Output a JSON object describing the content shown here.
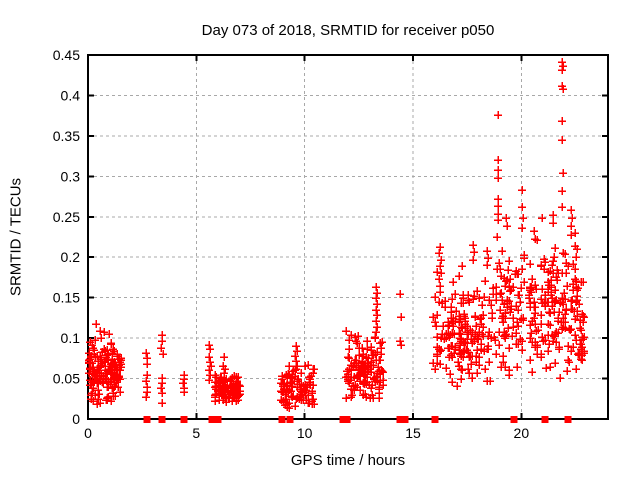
{
  "chart_data": {
    "type": "scatter",
    "title": "Day 073 of 2018, SRMTID for receiver p050",
    "xlabel": "GPS time / hours",
    "ylabel": "SRMTID / TECUs",
    "xlim": [
      0,
      24
    ],
    "ylim": [
      0,
      0.45
    ],
    "grid": true,
    "legend": "none",
    "x_ticks": [
      0,
      5,
      10,
      15,
      20
    ],
    "x_tick_labels": [
      "0",
      "5",
      "10",
      "15",
      "20"
    ],
    "y_ticks": [
      0,
      0.05,
      0.1,
      0.15,
      0.2,
      0.25,
      0.3,
      0.35,
      0.4,
      0.45
    ],
    "y_tick_labels": [
      "0",
      "0.05",
      "0.1",
      "0.15",
      "0.2",
      "0.25",
      "0.3",
      "0.35",
      "0.4",
      "0.45"
    ],
    "marker_color": "#ff0000",
    "grid_color": "#a8a8a8",
    "border_color": "#000000",
    "series": [
      {
        "name": "SRMTID",
        "marker": "plus",
        "points": [
          [
            0.38,
            0.117
          ],
          [
            0.3,
            0.098
          ],
          [
            0.55,
            0.109
          ],
          [
            0.72,
            0.108
          ],
          [
            0.95,
            0.105
          ],
          [
            1.08,
            0.094
          ],
          [
            0.62,
            0.1
          ],
          [
            0.18,
            0.092
          ],
          [
            0.25,
            0.022
          ],
          [
            0.55,
            0.02
          ],
          [
            0.85,
            0.024
          ],
          [
            1.15,
            0.028
          ],
          [
            0.4,
            0.018
          ],
          [
            2.68,
            0.082
          ],
          [
            2.72,
            0.075
          ],
          [
            2.7,
            0.068
          ],
          [
            2.74,
            0.055
          ],
          [
            2.68,
            0.047
          ],
          [
            2.72,
            0.04
          ],
          [
            2.7,
            0.033
          ],
          [
            2.68,
            0.027
          ],
          [
            3.4,
            0.104
          ],
          [
            3.42,
            0.096
          ],
          [
            3.38,
            0.088
          ],
          [
            3.44,
            0.08
          ],
          [
            3.4,
            0.051
          ],
          [
            3.42,
            0.045
          ],
          [
            3.38,
            0.038
          ],
          [
            3.42,
            0.032
          ],
          [
            3.4,
            0.02
          ],
          [
            4.42,
            0.054
          ],
          [
            4.44,
            0.049
          ],
          [
            4.4,
            0.044
          ],
          [
            4.44,
            0.038
          ],
          [
            4.42,
            0.033
          ],
          [
            5.6,
            0.091
          ],
          [
            5.64,
            0.086
          ],
          [
            5.58,
            0.077
          ],
          [
            5.62,
            0.071
          ],
          [
            5.66,
            0.066
          ],
          [
            5.6,
            0.06
          ],
          [
            5.63,
            0.055
          ],
          [
            5.6,
            0.048
          ],
          [
            6.28,
            0.077
          ],
          [
            6.24,
            0.066
          ],
          [
            6.33,
            0.062
          ],
          [
            9.6,
            0.09
          ],
          [
            9.63,
            0.084
          ],
          [
            9.57,
            0.078
          ],
          [
            9.62,
            0.072
          ],
          [
            9.65,
            0.066
          ],
          [
            13.28,
            0.163
          ],
          [
            13.33,
            0.156
          ],
          [
            13.3,
            0.149
          ],
          [
            13.35,
            0.142
          ],
          [
            13.28,
            0.135
          ],
          [
            13.32,
            0.128
          ],
          [
            13.3,
            0.121
          ],
          [
            13.36,
            0.114
          ],
          [
            13.3,
            0.107
          ],
          [
            13.26,
            0.1
          ],
          [
            13.55,
            0.095
          ],
          [
            13.52,
            0.088
          ],
          [
            14.42,
            0.155
          ],
          [
            14.45,
            0.126
          ],
          [
            14.42,
            0.097
          ],
          [
            14.46,
            0.091
          ],
          [
            16.25,
            0.213
          ],
          [
            16.22,
            0.205
          ],
          [
            16.28,
            0.197
          ],
          [
            16.24,
            0.189
          ],
          [
            16.27,
            0.181
          ],
          [
            16.22,
            0.173
          ],
          [
            16.26,
            0.165
          ],
          [
            16.24,
            0.157
          ],
          [
            17.78,
            0.215
          ],
          [
            17.81,
            0.206
          ],
          [
            17.76,
            0.197
          ],
          [
            18.42,
            0.208
          ],
          [
            18.45,
            0.199
          ],
          [
            18.4,
            0.19
          ],
          [
            18.92,
            0.376
          ],
          [
            18.9,
            0.32
          ],
          [
            18.94,
            0.308
          ],
          [
            18.92,
            0.298
          ],
          [
            18.9,
            0.272
          ],
          [
            18.94,
            0.263
          ],
          [
            18.92,
            0.254
          ],
          [
            18.9,
            0.246
          ],
          [
            19.3,
            0.248
          ],
          [
            19.33,
            0.238
          ],
          [
            20.05,
            0.283
          ],
          [
            20.02,
            0.262
          ],
          [
            20.08,
            0.248
          ],
          [
            20.6,
            0.232
          ],
          [
            20.63,
            0.222
          ],
          [
            21.45,
            0.252
          ],
          [
            21.48,
            0.242
          ],
          [
            21.86,
            0.441
          ],
          [
            21.9,
            0.437
          ],
          [
            21.88,
            0.431
          ],
          [
            21.88,
            0.412
          ],
          [
            21.9,
            0.408
          ],
          [
            21.88,
            0.368
          ],
          [
            21.86,
            0.345
          ],
          [
            21.9,
            0.304
          ],
          [
            21.88,
            0.282
          ],
          [
            21.86,
            0.262
          ],
          [
            22.3,
            0.258
          ],
          [
            22.33,
            0.248
          ],
          [
            22.28,
            0.238
          ],
          [
            22.3,
            0.228
          ]
        ],
        "clusters": [
          {
            "x_min": 0.02,
            "x_max": 1.55,
            "count": 150,
            "y_mean": 0.06,
            "y_sd": 0.017,
            "y_min": 0.018,
            "y_max": 0.098,
            "columns": 26
          },
          {
            "x_min": 5.85,
            "x_max": 7.05,
            "count": 115,
            "y_mean": 0.036,
            "y_sd": 0.009,
            "y_min": 0.02,
            "y_max": 0.062,
            "columns": 22
          },
          {
            "x_min": 8.9,
            "x_max": 10.45,
            "count": 105,
            "y_mean": 0.038,
            "y_sd": 0.013,
            "y_min": 0.013,
            "y_max": 0.08,
            "columns": 24
          },
          {
            "x_min": 11.9,
            "x_max": 13.65,
            "count": 135,
            "y_mean": 0.058,
            "y_sd": 0.018,
            "y_min": 0.022,
            "y_max": 0.118,
            "columns": 26
          },
          {
            "x_min": 15.9,
            "x_max": 18.75,
            "count": 175,
            "y_mean": 0.105,
            "y_sd": 0.034,
            "y_min": 0.04,
            "y_max": 0.215,
            "columns": 34
          },
          {
            "x_min": 18.78,
            "x_max": 20.15,
            "count": 85,
            "y_mean": 0.13,
            "y_sd": 0.042,
            "y_min": 0.05,
            "y_max": 0.255,
            "columns": 16
          },
          {
            "x_min": 20.35,
            "x_max": 22.58,
            "count": 165,
            "y_mean": 0.138,
            "y_sd": 0.042,
            "y_min": 0.048,
            "y_max": 0.25,
            "columns": 26
          },
          {
            "x_min": 22.6,
            "x_max": 22.92,
            "count": 28,
            "y_mean": 0.1,
            "y_sd": 0.03,
            "y_min": 0.05,
            "y_max": 0.175,
            "columns": 4
          }
        ]
      },
      {
        "name": "zero-flags",
        "marker": "filled-square",
        "x_at_zero": [
          2.7,
          3.42,
          4.43,
          5.7,
          6.01,
          8.94,
          9.32,
          11.75,
          11.95,
          14.4,
          14.62,
          16.02,
          19.67,
          21.08,
          22.16
        ]
      }
    ]
  }
}
